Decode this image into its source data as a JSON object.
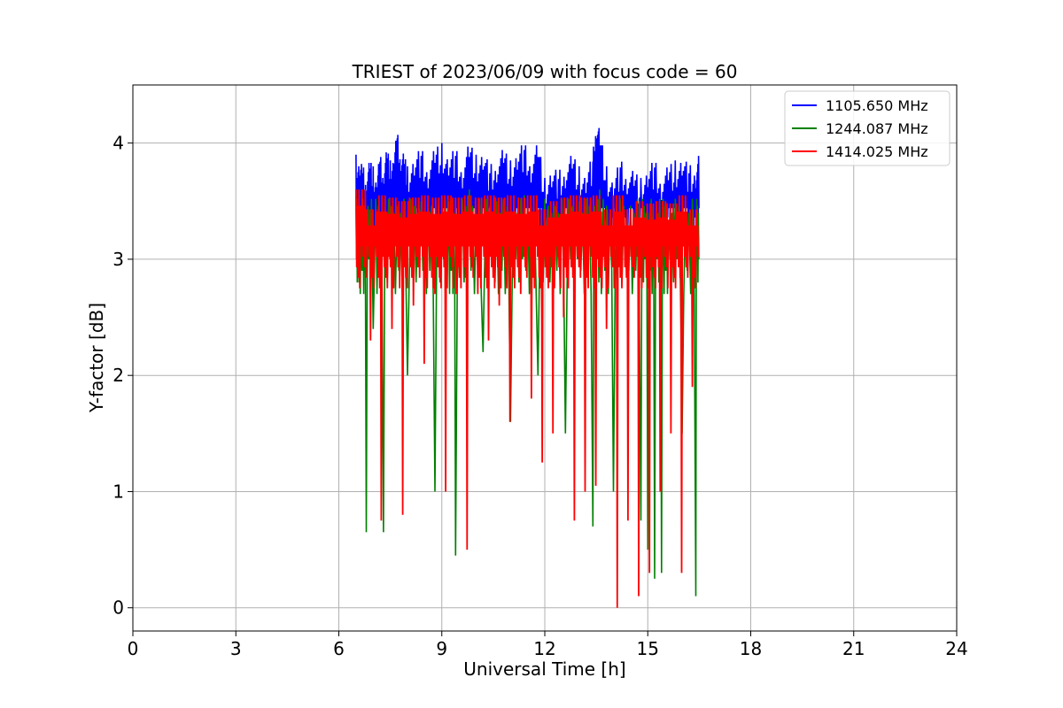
{
  "chart_data": {
    "type": "line",
    "title": "TRIEST of 2023/06/09 with focus code = 60",
    "xlabel": "Universal Time [h]",
    "ylabel": "Y-factor [dB]",
    "xlim": [
      0,
      24
    ],
    "ylim": [
      -0.2,
      4.5
    ],
    "xticks": [
      0,
      3,
      6,
      9,
      12,
      15,
      18,
      21,
      24
    ],
    "yticks": [
      0,
      1,
      2,
      3,
      4
    ],
    "grid": true,
    "legend_position": "top-right",
    "series": [
      {
        "name": "1105.650 MHz",
        "color": "#0000ff",
        "x": [
          6.5,
          6.6,
          6.7,
          6.8,
          6.9,
          7.0,
          7.1,
          7.2,
          7.3,
          7.4,
          7.5,
          7.6,
          7.7,
          7.8,
          7.9,
          8.0,
          8.2,
          8.4,
          8.6,
          8.8,
          9.0,
          9.2,
          9.4,
          9.6,
          9.8,
          10.0,
          10.2,
          10.4,
          10.6,
          10.8,
          11.0,
          11.2,
          11.4,
          11.6,
          11.8,
          12.0,
          12.2,
          12.4,
          12.6,
          12.8,
          13.0,
          13.2,
          13.4,
          13.5,
          13.6,
          13.8,
          14.0,
          14.2,
          14.4,
          14.6,
          14.8,
          15.0,
          15.2,
          15.4,
          15.6,
          15.8,
          16.0,
          16.2,
          16.4,
          16.5
        ],
        "y": [
          3.9,
          3.85,
          3.8,
          3.75,
          3.85,
          3.8,
          3.7,
          3.9,
          3.8,
          3.95,
          3.85,
          3.9,
          4.1,
          3.95,
          3.9,
          3.8,
          3.9,
          3.95,
          3.85,
          3.95,
          4.0,
          3.9,
          3.95,
          3.85,
          4.0,
          3.9,
          3.95,
          3.8,
          3.9,
          3.95,
          3.85,
          3.95,
          4.0,
          3.9,
          4.0,
          3.7,
          3.8,
          3.75,
          3.85,
          3.9,
          3.8,
          3.75,
          3.9,
          4.25,
          4.1,
          3.8,
          3.7,
          3.85,
          3.8,
          3.75,
          3.7,
          3.8,
          3.85,
          3.75,
          3.8,
          3.85,
          3.9,
          3.8,
          3.85,
          3.9
        ]
      },
      {
        "name": "1244.087 MHz",
        "color": "#008000",
        "x": [
          6.5,
          6.6,
          6.8,
          7.0,
          7.3,
          7.6,
          8.0,
          8.4,
          8.8,
          9.2,
          9.4,
          9.8,
          10.2,
          10.6,
          11.0,
          11.4,
          11.8,
          12.2,
          12.6,
          13.0,
          13.4,
          13.6,
          14.0,
          14.4,
          14.8,
          15.0,
          15.2,
          15.4,
          15.6,
          16.0,
          16.4,
          16.5
        ],
        "y": [
          3.55,
          3.2,
          0.65,
          2.4,
          0.65,
          3.4,
          2.0,
          3.5,
          1.0,
          3.5,
          0.45,
          3.6,
          2.2,
          3.5,
          1.6,
          3.55,
          2.0,
          3.4,
          1.5,
          3.5,
          0.7,
          3.6,
          1.0,
          3.4,
          0.75,
          0.5,
          0.25,
          0.3,
          3.3,
          1.5,
          0.1,
          1.65
        ]
      },
      {
        "name": "1414.025 MHz",
        "color": "#ff0000",
        "min": [
          2.75,
          2.3,
          0.75,
          2.4,
          0.8,
          2.6,
          2.1,
          2.7,
          1.0,
          2.7,
          0.5,
          2.7,
          2.3,
          2.6,
          1.6,
          2.7,
          1.8,
          1.25,
          1.5,
          2.5,
          0.75,
          1.0,
          1.05,
          2.4,
          0.0,
          0.75,
          0.1,
          0.3,
          1.0,
          1.5,
          0.3,
          1.9
        ],
        "max": [
          3.6,
          3.5,
          3.55,
          3.6,
          3.5,
          3.6,
          3.55,
          3.6,
          3.55,
          3.6,
          3.55,
          3.6,
          3.55,
          3.6,
          3.55,
          3.6,
          3.55,
          3.5,
          3.5,
          3.6,
          3.55,
          3.6,
          3.55,
          3.5,
          3.55,
          3.5,
          3.5,
          3.55,
          3.5,
          3.55,
          3.55,
          3.5
        ]
      }
    ]
  }
}
